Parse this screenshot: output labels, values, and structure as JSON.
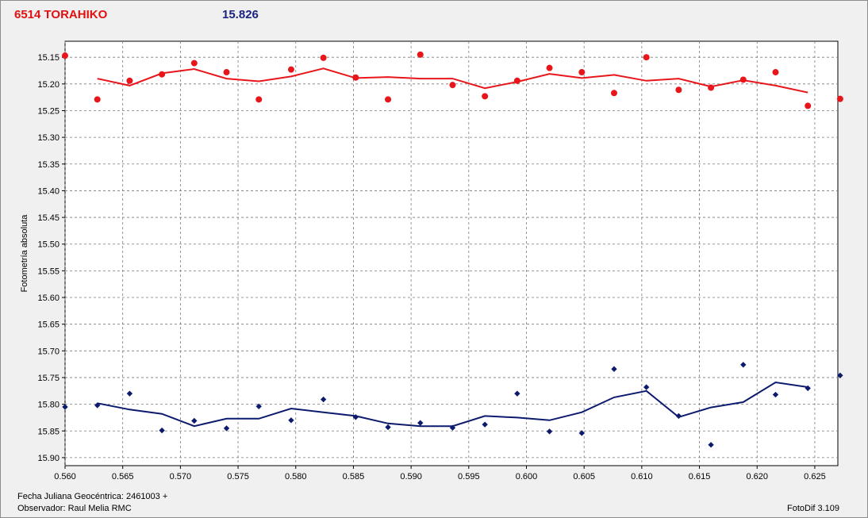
{
  "header": {
    "object_name": "6514 TORAHIKO",
    "magnitude": "15.826"
  },
  "footer": {
    "fecha": "Fecha Juliana Geocéntrica: 2461003 +",
    "observador": "Observador: Raul Melia RMC",
    "software": "FotoDif 3.109"
  },
  "colors": {
    "series_red": "#e8161b",
    "series_blue": "#0d1b6e",
    "grid": "#7a7a7a",
    "plot_bg": "#ffffff"
  },
  "chart_data": {
    "type": "scatter",
    "title": "",
    "xlabel": "",
    "ylabel": "Fotometría absoluta",
    "xlim": [
      0.56,
      0.627
    ],
    "ylim": [
      15.12,
      15.915
    ],
    "y_inverted": true,
    "grid": true,
    "x_ticks": [
      "0.560",
      "0.565",
      "0.570",
      "0.575",
      "0.580",
      "0.585",
      "0.590",
      "0.595",
      "0.600",
      "0.605",
      "0.610",
      "0.615",
      "0.620",
      "0.625"
    ],
    "y_ticks": [
      "15.15",
      "15.20",
      "15.25",
      "15.30",
      "15.35",
      "15.40",
      "15.45",
      "15.50",
      "15.55",
      "15.60",
      "15.65",
      "15.70",
      "15.75",
      "15.80",
      "15.85",
      "15.90"
    ],
    "series": [
      {
        "color": "#e8161b",
        "points": [
          [
            0.56,
            15.147
          ],
          [
            0.5628,
            15.229
          ],
          [
            0.5656,
            15.194
          ],
          [
            0.5684,
            15.182
          ],
          [
            0.5712,
            15.161
          ],
          [
            0.574,
            15.178
          ],
          [
            0.5768,
            15.229
          ],
          [
            0.5796,
            15.173
          ],
          [
            0.5824,
            15.151
          ],
          [
            0.5852,
            15.188
          ],
          [
            0.588,
            15.229
          ],
          [
            0.5908,
            15.145
          ],
          [
            0.5936,
            15.202
          ],
          [
            0.5964,
            15.223
          ],
          [
            0.5992,
            15.194
          ],
          [
            0.602,
            15.17
          ],
          [
            0.6048,
            15.178
          ],
          [
            0.6076,
            15.217
          ],
          [
            0.6104,
            15.15
          ],
          [
            0.6132,
            15.211
          ],
          [
            0.616,
            15.207
          ],
          [
            0.6188,
            15.192
          ],
          [
            0.6216,
            15.178
          ],
          [
            0.6244,
            15.241
          ],
          [
            0.6272,
            15.228
          ]
        ],
        "line": [
          [
            0.5628,
            15.19
          ],
          [
            0.5656,
            15.203
          ],
          [
            0.5684,
            15.18
          ],
          [
            0.5712,
            15.172
          ],
          [
            0.574,
            15.19
          ],
          [
            0.5768,
            15.195
          ],
          [
            0.5796,
            15.186
          ],
          [
            0.5824,
            15.171
          ],
          [
            0.5852,
            15.189
          ],
          [
            0.588,
            15.187
          ],
          [
            0.5908,
            15.19
          ],
          [
            0.5936,
            15.19
          ],
          [
            0.5964,
            15.208
          ],
          [
            0.5992,
            15.196
          ],
          [
            0.602,
            15.181
          ],
          [
            0.6048,
            15.189
          ],
          [
            0.6076,
            15.183
          ],
          [
            0.6104,
            15.194
          ],
          [
            0.6132,
            15.19
          ],
          [
            0.616,
            15.205
          ],
          [
            0.6188,
            15.193
          ],
          [
            0.6216,
            15.203
          ],
          [
            0.6244,
            15.216
          ]
        ]
      },
      {
        "color": "#0d1b6e",
        "points": [
          [
            0.56,
            15.805
          ],
          [
            0.5628,
            15.802
          ],
          [
            0.5656,
            15.78
          ],
          [
            0.5684,
            15.849
          ],
          [
            0.5712,
            15.831
          ],
          [
            0.574,
            15.845
          ],
          [
            0.5768,
            15.804
          ],
          [
            0.5796,
            15.83
          ],
          [
            0.5824,
            15.791
          ],
          [
            0.5852,
            15.824
          ],
          [
            0.588,
            15.843
          ],
          [
            0.5908,
            15.835
          ],
          [
            0.5936,
            15.844
          ],
          [
            0.5964,
            15.838
          ],
          [
            0.5992,
            15.78
          ],
          [
            0.602,
            15.851
          ],
          [
            0.6048,
            15.854
          ],
          [
            0.6076,
            15.734
          ],
          [
            0.6104,
            15.768
          ],
          [
            0.6132,
            15.822
          ],
          [
            0.616,
            15.876
          ],
          [
            0.6188,
            15.726
          ],
          [
            0.6216,
            15.782
          ],
          [
            0.6244,
            15.77
          ],
          [
            0.6272,
            15.746
          ]
        ],
        "line": [
          [
            0.5628,
            15.798
          ],
          [
            0.5656,
            15.81
          ],
          [
            0.5684,
            15.818
          ],
          [
            0.5712,
            15.841
          ],
          [
            0.574,
            15.827
          ],
          [
            0.5768,
            15.827
          ],
          [
            0.5796,
            15.808
          ],
          [
            0.5824,
            15.815
          ],
          [
            0.5852,
            15.822
          ],
          [
            0.588,
            15.836
          ],
          [
            0.5908,
            15.841
          ],
          [
            0.5936,
            15.841
          ],
          [
            0.5964,
            15.822
          ],
          [
            0.5992,
            15.825
          ],
          [
            0.602,
            15.83
          ],
          [
            0.6048,
            15.815
          ],
          [
            0.6076,
            15.787
          ],
          [
            0.6104,
            15.775
          ],
          [
            0.6132,
            15.824
          ],
          [
            0.616,
            15.806
          ],
          [
            0.6188,
            15.796
          ],
          [
            0.6216,
            15.759
          ],
          [
            0.6244,
            15.768
          ]
        ]
      }
    ]
  }
}
